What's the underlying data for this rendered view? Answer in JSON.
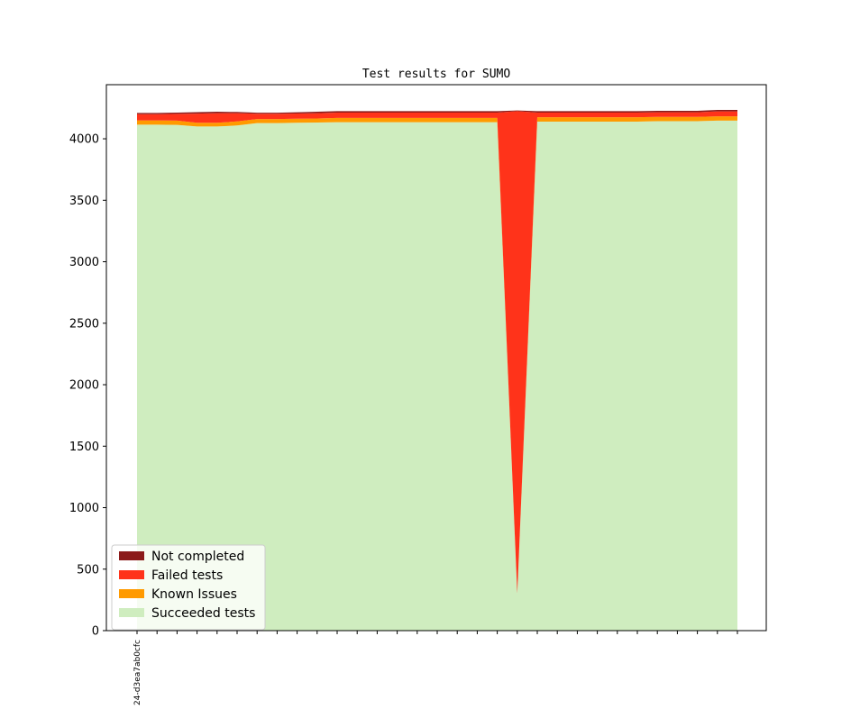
{
  "chart_data": {
    "type": "area",
    "title": "Test results for SUMO",
    "xlabel": "",
    "ylabel": "",
    "x_count": 31,
    "x_tick_labels": [
      "24-d3ea7ab0cfc"
    ],
    "ylim": [
      0,
      4440
    ],
    "yticks": [
      0,
      500,
      1000,
      1500,
      2000,
      2500,
      3000,
      3500,
      4000
    ],
    "grid": false,
    "stacked": true,
    "legend_position": "lower-left",
    "series": [
      {
        "name": "Succeeded tests",
        "color": "#cfedbf",
        "values": [
          4115,
          4115,
          4113,
          4100,
          4100,
          4108,
          4128,
          4128,
          4130,
          4132,
          4135,
          4135,
          4135,
          4135,
          4135,
          4135,
          4135,
          4135,
          4135,
          300,
          4140,
          4140,
          4140,
          4140,
          4140,
          4140,
          4143,
          4143,
          4143,
          4148,
          4148
        ]
      },
      {
        "name": "Known Issues",
        "color": "#ff9a00",
        "values": [
          35,
          35,
          35,
          30,
          30,
          33,
          33,
          33,
          33,
          33,
          35,
          35,
          35,
          35,
          35,
          35,
          35,
          35,
          35,
          0,
          35,
          35,
          35,
          35,
          35,
          35,
          35,
          35,
          35,
          35,
          35
        ]
      },
      {
        "name": "Failed tests",
        "color": "#ff331a",
        "values": [
          50,
          50,
          55,
          75,
          78,
          67,
          43,
          43,
          43,
          43,
          43,
          43,
          43,
          43,
          43,
          43,
          43,
          43,
          43,
          3925,
          38,
          38,
          38,
          38,
          38,
          38,
          38,
          38,
          38,
          40,
          40
        ]
      },
      {
        "name": "Not completed",
        "color": "#8b1a1a",
        "values": [
          10,
          10,
          10,
          12,
          12,
          10,
          8,
          8,
          10,
          12,
          12,
          12,
          12,
          12,
          12,
          12,
          12,
          12,
          12,
          5,
          12,
          12,
          12,
          12,
          12,
          12,
          12,
          12,
          12,
          12,
          12
        ]
      }
    ]
  }
}
